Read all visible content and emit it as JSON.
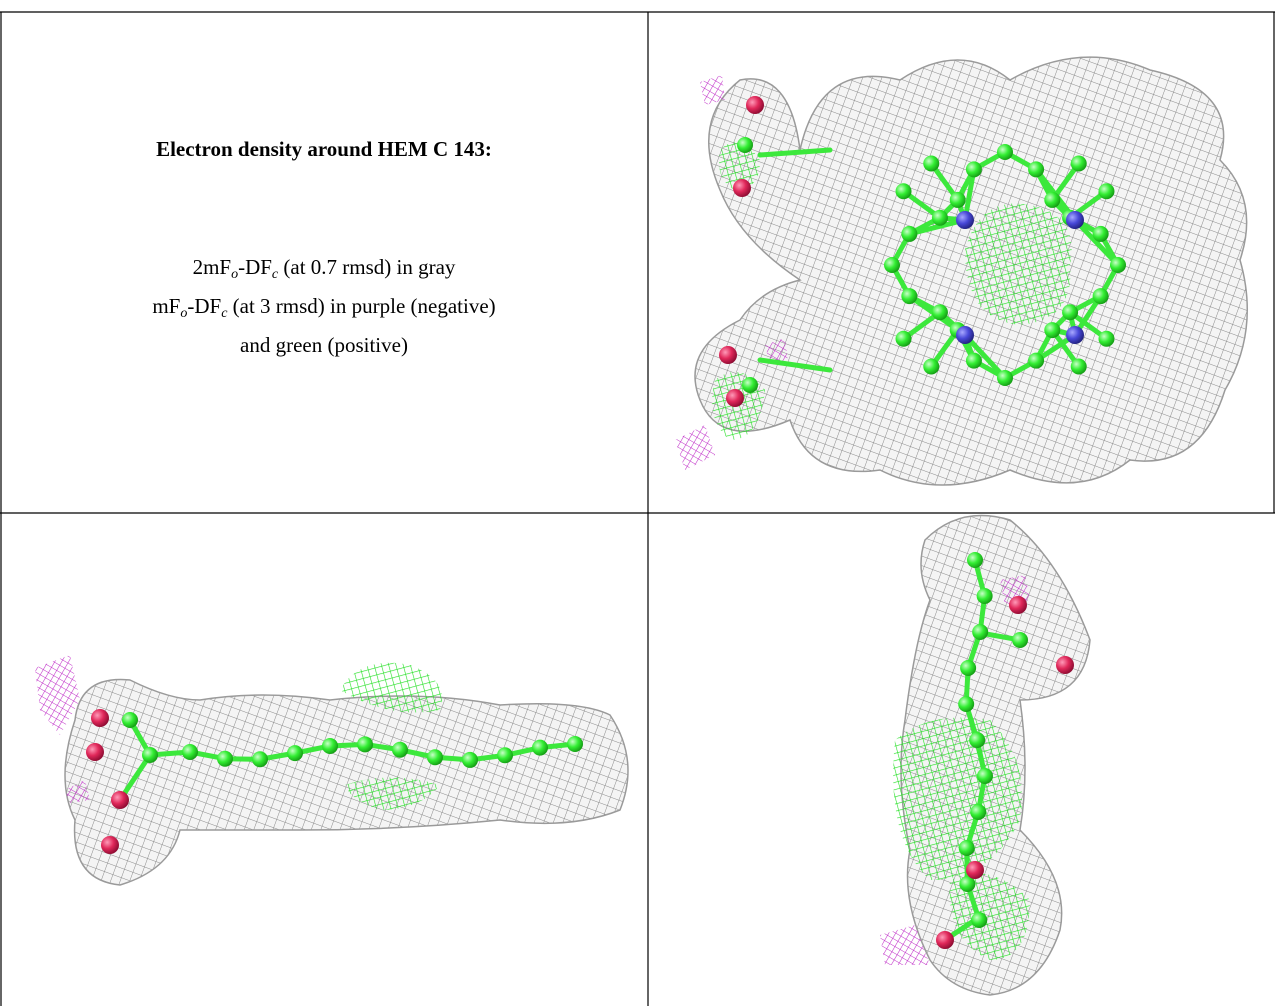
{
  "caption": {
    "title": "Electron density around HEM C 143:",
    "lines": [
      [
        {
          "text": "2mF"
        },
        {
          "sub": "o"
        },
        {
          "text": "-DF"
        },
        {
          "sub": "c"
        },
        {
          "text": " (at 0.7 rmsd) in gray"
        }
      ],
      [
        {
          "text": "mF"
        },
        {
          "sub": "o"
        },
        {
          "text": "-DF"
        },
        {
          "sub": "c"
        },
        {
          "text": " (at 3 rmsd) in purple (negative)"
        }
      ],
      [
        {
          "text": "and green (positive)"
        }
      ]
    ]
  }
}
